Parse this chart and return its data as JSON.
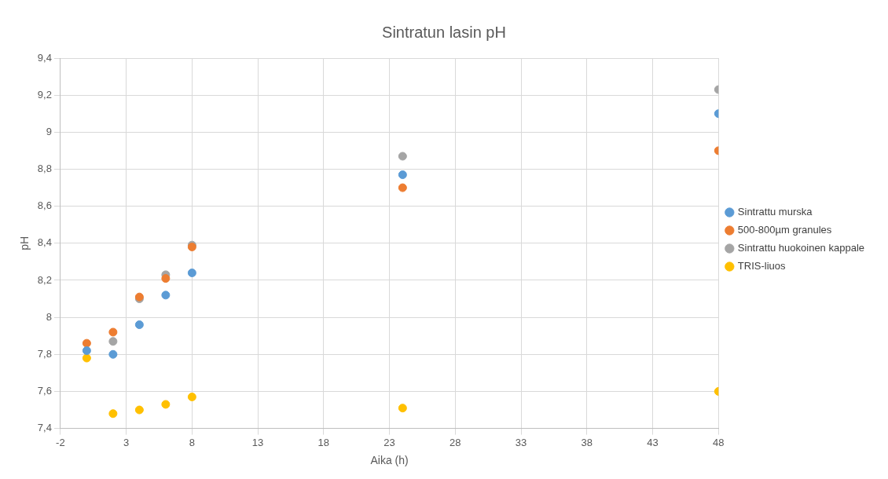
{
  "chart_data": {
    "type": "scatter",
    "title": "Sintratun lasin pH",
    "xlabel": "Aika (h)",
    "ylabel": "pH",
    "x": [
      0,
      2,
      4,
      6,
      8,
      24,
      48
    ],
    "series": [
      {
        "name": "Sintrattu murska",
        "color": "#5b9bd5",
        "values": [
          7.82,
          7.8,
          7.96,
          8.12,
          8.24,
          8.77,
          9.1
        ]
      },
      {
        "name": "500-800µm granules",
        "color": "#ed7d31",
        "values": [
          7.86,
          7.92,
          8.11,
          8.21,
          8.38,
          8.7,
          8.9
        ]
      },
      {
        "name": "Sintrattu huokoinen kappale",
        "color": "#a5a5a5",
        "values": [
          null,
          7.87,
          8.1,
          8.23,
          8.39,
          8.87,
          9.23
        ]
      },
      {
        "name": "TRIS-liuos",
        "color": "#ffc000",
        "values": [
          7.78,
          7.48,
          7.5,
          7.53,
          7.57,
          7.51,
          7.6
        ]
      }
    ],
    "xlim": [
      -2,
      48
    ],
    "xticks": [
      -2,
      3,
      8,
      13,
      18,
      23,
      28,
      33,
      38,
      43,
      48
    ],
    "ylim": [
      7.4,
      9.4
    ],
    "yticks": [
      {
        "value": 7.4,
        "label": "7,4"
      },
      {
        "value": 7.6,
        "label": "7,6"
      },
      {
        "value": 7.8,
        "label": "7,8"
      },
      8,
      {
        "value": 8.2,
        "label": "8,2"
      },
      {
        "value": 8.4,
        "label": "8,4"
      },
      {
        "value": 8.6,
        "label": "8,6"
      },
      {
        "value": 8.8,
        "label": "8,8"
      },
      9,
      {
        "value": 9.2,
        "label": "9,2"
      },
      {
        "value": 9.4,
        "label": "9,4"
      }
    ],
    "grid": true,
    "legend": "right",
    "marker": "circle"
  }
}
